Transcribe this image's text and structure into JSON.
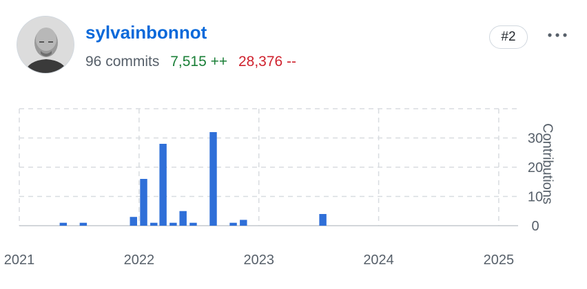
{
  "user": {
    "username": "sylvainbonnot",
    "commits": "96 commits",
    "additions": "7,515 ++",
    "deletions": "28,376 --",
    "rank": "#2"
  },
  "menu": {
    "icon": "kebab-horizontal-icon"
  },
  "colors": {
    "bar": "#2f6fd8",
    "link": "#0969da",
    "additions": "#1a7f37",
    "deletions": "#cf222e",
    "muted": "#57606a",
    "grid": "#d8dce0"
  },
  "chart_data": {
    "type": "bar",
    "ylabel": "Contributions",
    "ylim": [
      0,
      40
    ],
    "y_ticks": [
      0,
      10,
      20,
      30
    ],
    "x_ticks": [
      "2021",
      "2022",
      "2023",
      "2024",
      "2025"
    ],
    "x_range": [
      "2021-01-01",
      "2025-03-01"
    ],
    "grid": true,
    "y_axis_position": "right",
    "bar_period": "month",
    "series": [
      {
        "x": [
          "2021-05",
          "2021-07",
          "2021-12",
          "2022-01",
          "2022-02",
          "2022-03",
          "2022-04",
          "2022-05",
          "2022-06",
          "2022-08",
          "2022-10",
          "2022-11",
          "2023-07"
        ],
        "values": [
          1,
          1,
          3,
          16,
          1,
          28,
          1,
          5,
          1,
          32,
          1,
          2,
          4
        ]
      }
    ]
  }
}
